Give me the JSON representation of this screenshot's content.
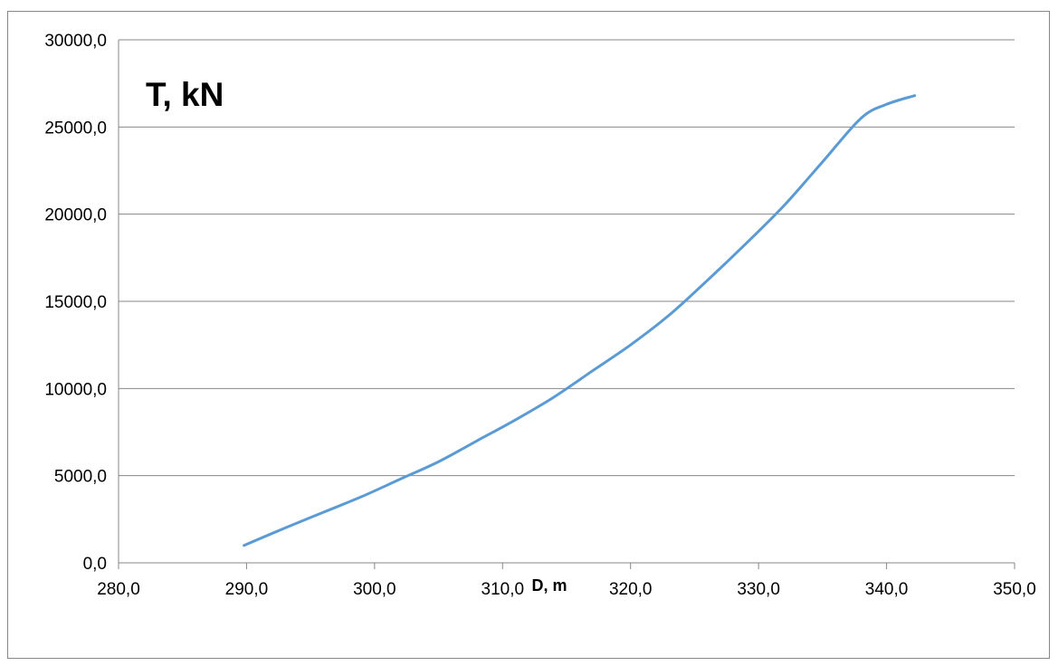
{
  "chart_data": {
    "type": "line",
    "title": "",
    "ylabel": "T, kN",
    "xlabel": "D, m",
    "xlim": [
      280,
      350
    ],
    "ylim": [
      0,
      30000
    ],
    "x_ticks": [
      "280,0",
      "290,0",
      "300,0",
      "310,0",
      "320,0",
      "330,0",
      "340,0",
      "350,0"
    ],
    "y_ticks": [
      "0,0",
      "5000,0",
      "10000,0",
      "15000,0",
      "20000,0",
      "25000,0",
      "30000,0"
    ],
    "grid": "horizontal",
    "legend": "none",
    "series": [
      {
        "color": "#5b9bd5",
        "x": [
          289.8,
          293.0,
          296.0,
          299.0,
          302.0,
          305.0,
          308.0,
          311.0,
          314.0,
          317.0,
          320.0,
          323.0,
          326.0,
          329.0,
          332.0,
          335.0,
          338.0,
          340.0,
          342.2
        ],
        "y": [
          1000,
          2000,
          2900,
          3800,
          4800,
          5800,
          7000,
          8200,
          9500,
          11000,
          12500,
          14200,
          16200,
          18300,
          20500,
          23000,
          25500,
          26300,
          26800
        ]
      }
    ]
  }
}
